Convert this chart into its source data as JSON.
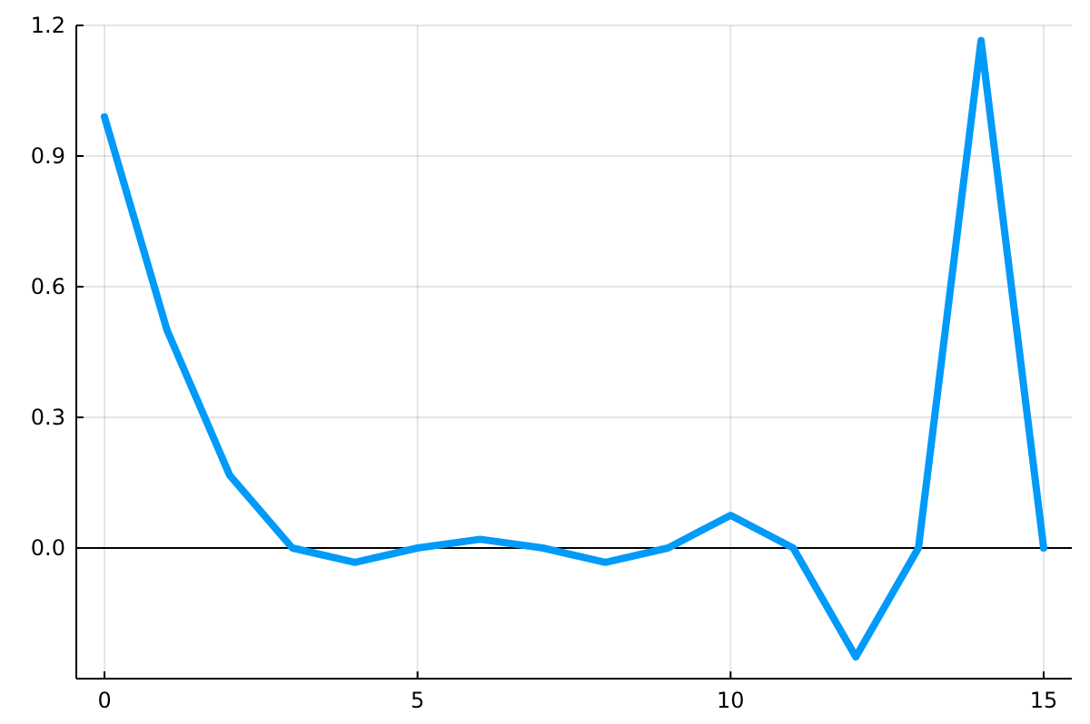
{
  "chart_data": {
    "type": "line",
    "x": [
      0,
      1,
      2,
      3,
      4,
      5,
      6,
      7,
      8,
      9,
      10,
      11,
      12,
      13,
      14,
      15
    ],
    "series": [
      {
        "color": "#009af9",
        "values": [
          0.99,
          0.5,
          0.167,
          0,
          -0.033,
          0,
          0.02,
          0,
          -0.033,
          0,
          0.075,
          0,
          -0.25,
          0,
          1.165,
          0
        ]
      }
    ],
    "xlim": [
      -0.45,
      15.45
    ],
    "xticks": [
      0,
      5,
      10,
      15
    ],
    "ylim": [
      -0.3,
      1.2
    ],
    "yticks": [
      {
        "value": 0,
        "label": "0.0"
      },
      {
        "value": 0.3,
        "label": "0.3"
      },
      {
        "value": 0.6,
        "label": "0.6"
      },
      {
        "value": 0.9,
        "label": "0.9"
      },
      {
        "value": 1.2,
        "label": "1.2"
      }
    ],
    "grid": true,
    "line_style": "solid",
    "marker": "none",
    "ref_lines": [
      {
        "axis": "y",
        "value": 0,
        "color": "#000000"
      }
    ]
  }
}
